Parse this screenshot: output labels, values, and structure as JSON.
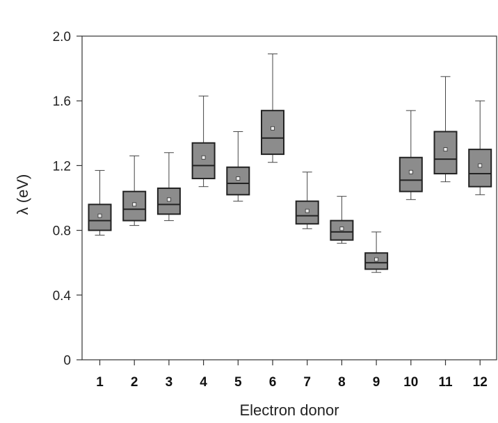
{
  "chart_data": {
    "type": "box",
    "title": "",
    "xlabel": "Electron donor",
    "ylabel": "λ (eV)",
    "ylim": [
      0,
      2.0
    ],
    "yticks": [
      "0",
      "0.4",
      "0.8",
      "1.2",
      "1.6",
      "2.0"
    ],
    "categories": [
      "1",
      "2",
      "3",
      "4",
      "5",
      "6",
      "7",
      "8",
      "9",
      "10",
      "11",
      "12"
    ],
    "boxes": [
      {
        "min": 0.77,
        "q1": 0.8,
        "median": 0.86,
        "q3": 0.96,
        "max": 1.17,
        "mean": 0.89
      },
      {
        "min": 0.83,
        "q1": 0.86,
        "median": 0.93,
        "q3": 1.04,
        "max": 1.26,
        "mean": 0.96
      },
      {
        "min": 0.86,
        "q1": 0.9,
        "median": 0.96,
        "q3": 1.06,
        "max": 1.28,
        "mean": 0.99
      },
      {
        "min": 1.07,
        "q1": 1.12,
        "median": 1.2,
        "q3": 1.34,
        "max": 1.63,
        "mean": 1.25
      },
      {
        "min": 0.98,
        "q1": 1.02,
        "median": 1.09,
        "q3": 1.19,
        "max": 1.41,
        "mean": 1.12
      },
      {
        "min": 1.22,
        "q1": 1.27,
        "median": 1.37,
        "q3": 1.54,
        "max": 1.89,
        "mean": 1.43
      },
      {
        "min": 0.81,
        "q1": 0.84,
        "median": 0.89,
        "q3": 0.98,
        "max": 1.16,
        "mean": 0.92
      },
      {
        "min": 0.72,
        "q1": 0.74,
        "median": 0.79,
        "q3": 0.86,
        "max": 1.01,
        "mean": 0.81
      },
      {
        "min": 0.54,
        "q1": 0.56,
        "median": 0.6,
        "q3": 0.66,
        "max": 0.79,
        "mean": 0.62
      },
      {
        "min": 0.99,
        "q1": 1.04,
        "median": 1.11,
        "q3": 1.25,
        "max": 1.54,
        "mean": 1.16
      },
      {
        "min": 1.1,
        "q1": 1.15,
        "median": 1.24,
        "q3": 1.41,
        "max": 1.75,
        "mean": 1.3
      },
      {
        "min": 1.02,
        "q1": 1.07,
        "median": 1.15,
        "q3": 1.3,
        "max": 1.6,
        "mean": 1.2
      }
    ],
    "grid": false,
    "colors": {
      "box_fill": "#8c8c8c",
      "box_stroke": "#222222",
      "whisker": "#444444",
      "mean_marker_fill": "#eeeeee"
    }
  }
}
